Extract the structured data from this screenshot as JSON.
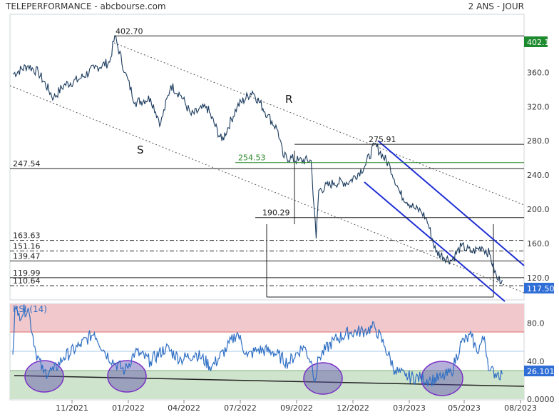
{
  "header": {
    "title": "TELEPERFORMANCE - abcbourse.com",
    "period": "2 ANS - JOUR"
  },
  "chart_data": [
    {
      "type": "line",
      "ylim": [
        94,
        428
      ],
      "y_ticks": [
        "360.0",
        "320.0",
        "280.0",
        "240.0",
        "200.0",
        "160.0",
        "120.0"
      ],
      "y_tick_values": [
        360,
        320,
        280,
        240,
        200,
        160,
        120
      ],
      "x_ticks": [
        "11/2021",
        "01/2022",
        "04/2022",
        "07/2022",
        "09/2022",
        "12/2022",
        "03/2023",
        "05/2023",
        "08/2023"
      ],
      "last_value": "117.50",
      "top_marker": "402.1",
      "levels": [
        {
          "label": "402.70",
          "value": 402.7
        },
        {
          "label": "275.91",
          "value": 275.91
        },
        {
          "label": "254.53",
          "value": 254.53
        },
        {
          "label": "247.54",
          "value": 247.54
        },
        {
          "label": "190.29",
          "value": 190.29
        },
        {
          "label": "163.63",
          "value": 163.63
        },
        {
          "label": "151.16",
          "value": 151.16
        },
        {
          "label": "139.47",
          "value": 139.47
        },
        {
          "label": "119.99",
          "value": 119.99
        },
        {
          "label": "110.64",
          "value": 110.64
        }
      ],
      "annotations": [
        "S",
        "R"
      ],
      "series_points": [
        [
          0,
          358
        ],
        [
          0.03,
          368
        ],
        [
          0.05,
          360
        ],
        [
          0.08,
          330
        ],
        [
          0.1,
          345
        ],
        [
          0.13,
          352
        ],
        [
          0.16,
          365
        ],
        [
          0.19,
          372
        ],
        [
          0.2,
          402.7
        ],
        [
          0.22,
          360
        ],
        [
          0.24,
          325
        ],
        [
          0.27,
          330
        ],
        [
          0.29,
          300
        ],
        [
          0.31,
          345
        ],
        [
          0.33,
          333
        ],
        [
          0.35,
          310
        ],
        [
          0.38,
          320
        ],
        [
          0.41,
          280
        ],
        [
          0.44,
          320
        ],
        [
          0.47,
          338
        ],
        [
          0.5,
          310
        ],
        [
          0.52,
          292
        ],
        [
          0.53,
          262
        ],
        [
          0.56,
          257
        ],
        [
          0.585,
          257
        ],
        [
          0.595,
          166
        ],
        [
          0.6,
          222
        ],
        [
          0.63,
          231
        ],
        [
          0.66,
          232
        ],
        [
          0.69,
          250
        ],
        [
          0.71,
          275.91
        ],
        [
          0.74,
          250
        ],
        [
          0.76,
          218
        ],
        [
          0.79,
          200
        ],
        [
          0.8,
          198
        ],
        [
          0.81,
          190
        ],
        [
          0.815,
          182
        ],
        [
          0.83,
          150
        ],
        [
          0.86,
          140
        ],
        [
          0.88,
          157
        ],
        [
          0.9,
          150
        ],
        [
          0.92,
          156
        ],
        [
          0.935,
          148
        ],
        [
          0.95,
          118
        ],
        [
          0.96,
          117.5
        ]
      ]
    },
    {
      "type": "line",
      "title": "RSI (14)",
      "ylim": [
        0,
        100
      ],
      "y_ticks": [
        "80.0",
        "40.0",
        "0.0000"
      ],
      "y_tick_values": [
        80,
        40,
        0
      ],
      "last_value": "26.101",
      "series_points": [
        [
          0,
          47
        ],
        [
          0.004,
          96
        ],
        [
          0.01,
          88
        ],
        [
          0.03,
          96
        ],
        [
          0.045,
          50
        ],
        [
          0.06,
          28
        ],
        [
          0.08,
          30
        ],
        [
          0.1,
          44
        ],
        [
          0.13,
          56
        ],
        [
          0.16,
          70
        ],
        [
          0.18,
          50
        ],
        [
          0.2,
          38
        ],
        [
          0.22,
          30
        ],
        [
          0.24,
          50
        ],
        [
          0.27,
          40
        ],
        [
          0.3,
          54
        ],
        [
          0.33,
          42
        ],
        [
          0.36,
          48
        ],
        [
          0.39,
          34
        ],
        [
          0.42,
          54
        ],
        [
          0.44,
          70
        ],
        [
          0.46,
          45
        ],
        [
          0.48,
          52
        ],
        [
          0.51,
          50
        ],
        [
          0.54,
          38
        ],
        [
          0.57,
          56
        ],
        [
          0.585,
          40
        ],
        [
          0.593,
          20
        ],
        [
          0.6,
          44
        ],
        [
          0.63,
          62
        ],
        [
          0.66,
          70
        ],
        [
          0.69,
          72
        ],
        [
          0.71,
          76
        ],
        [
          0.73,
          55
        ],
        [
          0.75,
          30
        ],
        [
          0.77,
          24
        ],
        [
          0.8,
          22
        ],
        [
          0.82,
          20
        ],
        [
          0.84,
          22
        ],
        [
          0.86,
          28
        ],
        [
          0.88,
          60
        ],
        [
          0.9,
          66
        ],
        [
          0.91,
          50
        ],
        [
          0.925,
          65
        ],
        [
          0.935,
          30
        ],
        [
          0.95,
          27
        ],
        [
          0.96,
          26.1
        ]
      ]
    }
  ]
}
